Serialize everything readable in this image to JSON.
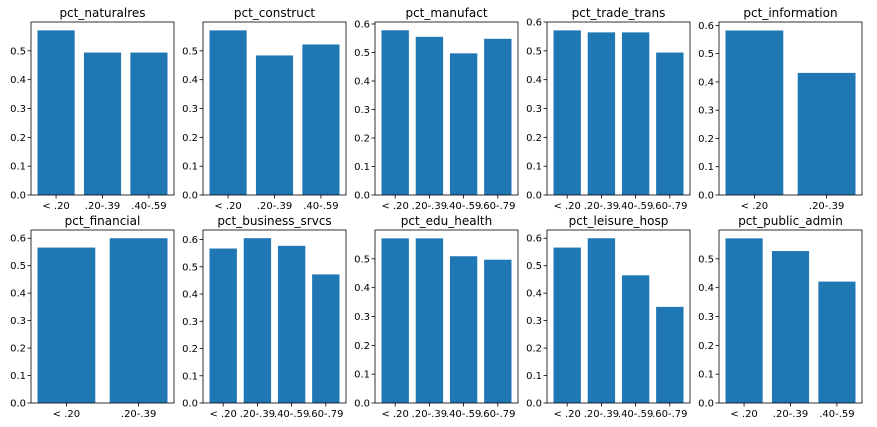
{
  "chart_data": [
    {
      "type": "bar",
      "title": "pct_naturalres",
      "categories": [
        "< .20",
        ".20-.39",
        ".40-.59"
      ],
      "values": [
        0.571,
        0.494,
        0.494
      ],
      "ylim": [
        0,
        0.6
      ],
      "yticks": [
        0.0,
        0.1,
        0.2,
        0.3,
        0.4,
        0.5
      ]
    },
    {
      "type": "bar",
      "title": "pct_construct",
      "categories": [
        "< .20",
        ".20-.39",
        ".40-.59"
      ],
      "values": [
        0.571,
        0.484,
        0.522
      ],
      "ylim": [
        0,
        0.6
      ],
      "yticks": [
        0.0,
        0.1,
        0.2,
        0.3,
        0.4,
        0.5
      ]
    },
    {
      "type": "bar",
      "title": "pct_manufact",
      "categories": [
        "< .20",
        ".20-.39",
        ".40-.59",
        ".60-.79"
      ],
      "values": [
        0.578,
        0.555,
        0.497,
        0.548
      ],
      "ylim": [
        0,
        0.607
      ],
      "yticks": [
        0.0,
        0.1,
        0.2,
        0.3,
        0.4,
        0.5,
        0.6
      ]
    },
    {
      "type": "bar",
      "title": "pct_trade_trans",
      "categories": [
        "< .20",
        ".20-.39",
        ".40-.59",
        ".60-.79"
      ],
      "values": [
        0.571,
        0.564,
        0.564,
        0.494
      ],
      "ylim": [
        0,
        0.6
      ],
      "yticks": [
        0.0,
        0.1,
        0.2,
        0.3,
        0.4,
        0.5,
        0.6
      ]
    },
    {
      "type": "bar",
      "title": "pct_information",
      "categories": [
        "< .20",
        ".20-.39"
      ],
      "values": [
        0.582,
        0.432
      ],
      "ylim": [
        0,
        0.612
      ],
      "yticks": [
        0.0,
        0.1,
        0.2,
        0.3,
        0.4,
        0.5,
        0.6
      ]
    },
    {
      "type": "bar",
      "title": "pct_financial",
      "categories": [
        "< .20",
        ".20-.39"
      ],
      "values": [
        0.566,
        0.6
      ],
      "ylim": [
        0,
        0.63
      ],
      "yticks": [
        0.0,
        0.1,
        0.2,
        0.3,
        0.4,
        0.5,
        0.6
      ]
    },
    {
      "type": "bar",
      "title": "pct_business_srvcs",
      "categories": [
        "< .20",
        ".20-.39",
        ".40-.59",
        ".60-.79"
      ],
      "values": [
        0.567,
        0.605,
        0.577,
        0.472
      ],
      "ylim": [
        0,
        0.635
      ],
      "yticks": [
        0.0,
        0.1,
        0.2,
        0.3,
        0.4,
        0.5,
        0.6
      ]
    },
    {
      "type": "bar",
      "title": "pct_edu_health",
      "categories": [
        "< .20",
        ".20-.39",
        ".40-.59",
        ".60-.79"
      ],
      "values": [
        0.571,
        0.571,
        0.509,
        0.497
      ],
      "ylim": [
        0,
        0.6
      ],
      "yticks": [
        0.0,
        0.1,
        0.2,
        0.3,
        0.4,
        0.5
      ]
    },
    {
      "type": "bar",
      "title": "pct_leisure_hosp",
      "categories": [
        "< .20",
        ".20-.39",
        ".40-.59",
        ".60-.79"
      ],
      "values": [
        0.566,
        0.6,
        0.465,
        0.35
      ],
      "ylim": [
        0,
        0.63
      ],
      "yticks": [
        0.0,
        0.1,
        0.2,
        0.3,
        0.4,
        0.5,
        0.6
      ]
    },
    {
      "type": "bar",
      "title": "pct_public_admin",
      "categories": [
        "< .20",
        ".20-.39",
        ".40-.59"
      ],
      "values": [
        0.571,
        0.527,
        0.421
      ],
      "ylim": [
        0,
        0.6
      ],
      "yticks": [
        0.0,
        0.1,
        0.2,
        0.3,
        0.4,
        0.5
      ]
    }
  ],
  "colors": {
    "bar": "#1f77b4",
    "axis": "#000000",
    "background": "#ffffff"
  }
}
